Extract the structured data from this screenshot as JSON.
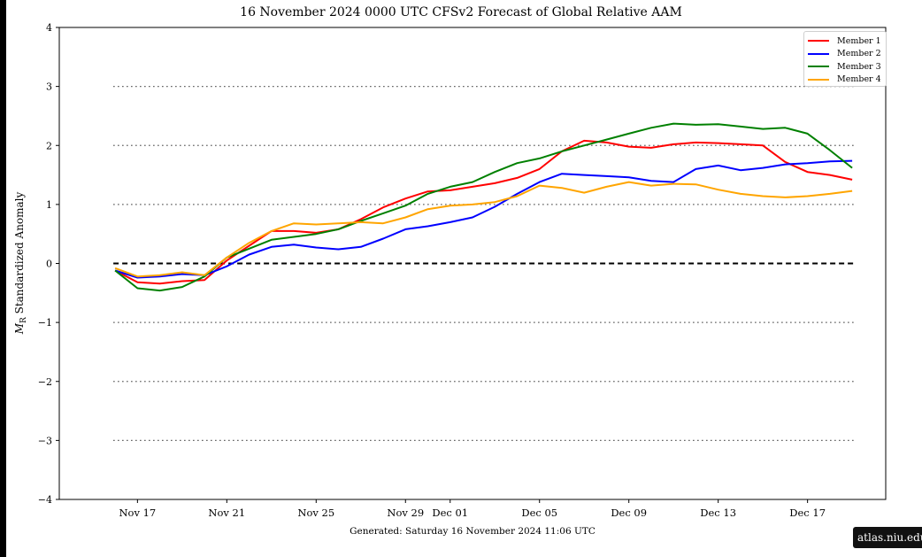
{
  "chart_data": {
    "type": "line",
    "title": "16  November  2024 0000 UTC   CFSv2 Forecast of Global Relative AAM",
    "ylabel": "M_R Standardized Anomaly",
    "ylabel_main": "M",
    "ylabel_sub": "R",
    "ylabel_rest": " Standardized Anomaly",
    "footer": "Generated: Saturday  16  November  2024  11:06 UTC",
    "ylim": [
      -4,
      4
    ],
    "yticks": [
      4,
      3,
      2,
      1,
      0,
      -1,
      -2,
      -3,
      -4
    ],
    "ytick_labels": [
      "4",
      "3",
      "2",
      "1",
      "0",
      "−1",
      "−2",
      "−3",
      "−4"
    ],
    "xlim": [
      "2024-11-13 12:00",
      "2024-12-20 12:00"
    ],
    "xticks": [
      {
        "label": "Nov 17",
        "date": "2024-11-17"
      },
      {
        "label": "Nov 21",
        "date": "2024-11-21"
      },
      {
        "label": "Nov 25",
        "date": "2024-11-25"
      },
      {
        "label": "Nov 29",
        "date": "2024-11-29"
      },
      {
        "label": "Dec 01",
        "date": "2024-12-01"
      },
      {
        "label": "Dec 05",
        "date": "2024-12-05"
      },
      {
        "label": "Dec 09",
        "date": "2024-12-09"
      },
      {
        "label": "Dec 13",
        "date": "2024-12-13"
      },
      {
        "label": "Dec 17",
        "date": "2024-12-17"
      }
    ],
    "reference_lines": {
      "dotted": [
        3,
        2,
        1,
        -1,
        -2,
        -3
      ],
      "dashed": [
        0
      ]
    },
    "legend_position": "top-right",
    "x": [
      "2024-11-16",
      "2024-11-17",
      "2024-11-18",
      "2024-11-19",
      "2024-11-20",
      "2024-11-21",
      "2024-11-22",
      "2024-11-23",
      "2024-11-24",
      "2024-11-25",
      "2024-11-26",
      "2024-11-27",
      "2024-11-28",
      "2024-11-29",
      "2024-11-30",
      "2024-12-01",
      "2024-12-02",
      "2024-12-03",
      "2024-12-04",
      "2024-12-05",
      "2024-12-06",
      "2024-12-07",
      "2024-12-08",
      "2024-12-09",
      "2024-12-10",
      "2024-12-11",
      "2024-12-12",
      "2024-12-13",
      "2024-12-14",
      "2024-12-15",
      "2024-12-16",
      "2024-12-17",
      "2024-12-18",
      "2024-12-19"
    ],
    "series": [
      {
        "name": "Member 1",
        "color": "#ff0000",
        "values": [
          -0.12,
          -0.32,
          -0.34,
          -0.3,
          -0.28,
          0.05,
          0.3,
          0.55,
          0.55,
          0.52,
          0.58,
          0.75,
          0.95,
          1.1,
          1.22,
          1.24,
          1.3,
          1.36,
          1.45,
          1.6,
          1.9,
          2.08,
          2.05,
          1.98,
          1.96,
          2.02,
          2.05,
          2.04,
          2.02,
          2.0,
          1.72,
          1.55,
          1.5,
          1.42
        ]
      },
      {
        "name": "Member 2",
        "color": "#0000ff",
        "values": [
          -0.12,
          -0.24,
          -0.22,
          -0.18,
          -0.2,
          -0.05,
          0.15,
          0.28,
          0.32,
          0.27,
          0.24,
          0.28,
          0.42,
          0.58,
          0.63,
          0.7,
          0.78,
          0.96,
          1.18,
          1.38,
          1.52,
          1.5,
          1.48,
          1.46,
          1.4,
          1.38,
          1.6,
          1.66,
          1.58,
          1.62,
          1.68,
          1.7,
          1.73,
          1.74
        ]
      },
      {
        "name": "Member 3",
        "color": "#008000",
        "values": [
          -0.12,
          -0.42,
          -0.46,
          -0.4,
          -0.22,
          0.1,
          0.25,
          0.4,
          0.45,
          0.5,
          0.58,
          0.72,
          0.85,
          0.98,
          1.18,
          1.3,
          1.38,
          1.55,
          1.7,
          1.78,
          1.9,
          2.0,
          2.1,
          2.2,
          2.3,
          2.37,
          2.35,
          2.36,
          2.32,
          2.28,
          2.3,
          2.2,
          1.92,
          1.62
        ]
      },
      {
        "name": "Member 4",
        "color": "#ffa500",
        "values": [
          -0.08,
          -0.22,
          -0.2,
          -0.15,
          -0.2,
          0.1,
          0.35,
          0.55,
          0.68,
          0.66,
          0.68,
          0.7,
          0.68,
          0.78,
          0.92,
          0.98,
          1.0,
          1.04,
          1.14,
          1.32,
          1.28,
          1.2,
          1.3,
          1.38,
          1.32,
          1.35,
          1.34,
          1.25,
          1.18,
          1.14,
          1.12,
          1.14,
          1.18,
          1.23
        ]
      }
    ]
  },
  "badge": "atlas.niu.edu"
}
